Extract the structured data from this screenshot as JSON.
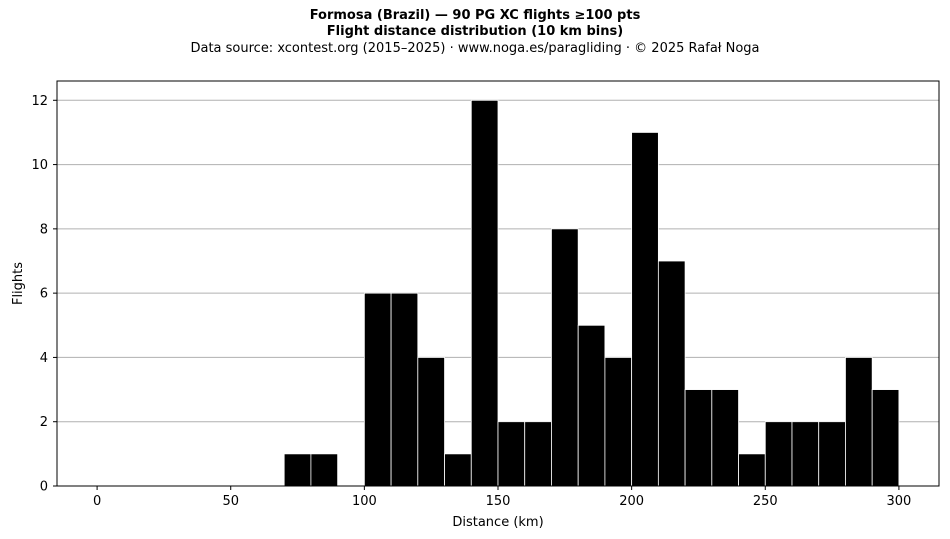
{
  "title_line1": "Formosa (Brazil)  —  90 PG XC flights ≥100 pts",
  "title_line2": "Flight distance distribution (10 km bins)",
  "subtitle": "Data source: xcontest.org (2015–2025)  ·  www.noga.es/paragliding  ·  © 2025 Rafał Noga",
  "chart_data": {
    "type": "bar",
    "title": "Formosa (Brazil)  —  90 PG XC flights ≥100 pts",
    "subtitle": "Flight distance distribution (10 km bins)",
    "xlabel": "Distance (km)",
    "ylabel": "Flights",
    "xlim": [
      -15,
      315
    ],
    "ylim": [
      0,
      12.6
    ],
    "xticks": [
      0,
      50,
      100,
      150,
      200,
      250,
      300
    ],
    "yticks": [
      0,
      2,
      4,
      6,
      8,
      10,
      12
    ],
    "grid": "y",
    "bar_color": "#000000",
    "edge_color": "#ffffff",
    "bin_width": 10,
    "bin_starts": [
      70,
      80,
      100,
      110,
      120,
      130,
      140,
      150,
      160,
      170,
      180,
      190,
      200,
      210,
      220,
      230,
      240,
      250,
      260,
      270,
      280,
      290
    ],
    "values": [
      1,
      1,
      6,
      6,
      4,
      1,
      12,
      2,
      2,
      8,
      5,
      4,
      11,
      7,
      3,
      3,
      1,
      2,
      2,
      2,
      4,
      3
    ]
  }
}
